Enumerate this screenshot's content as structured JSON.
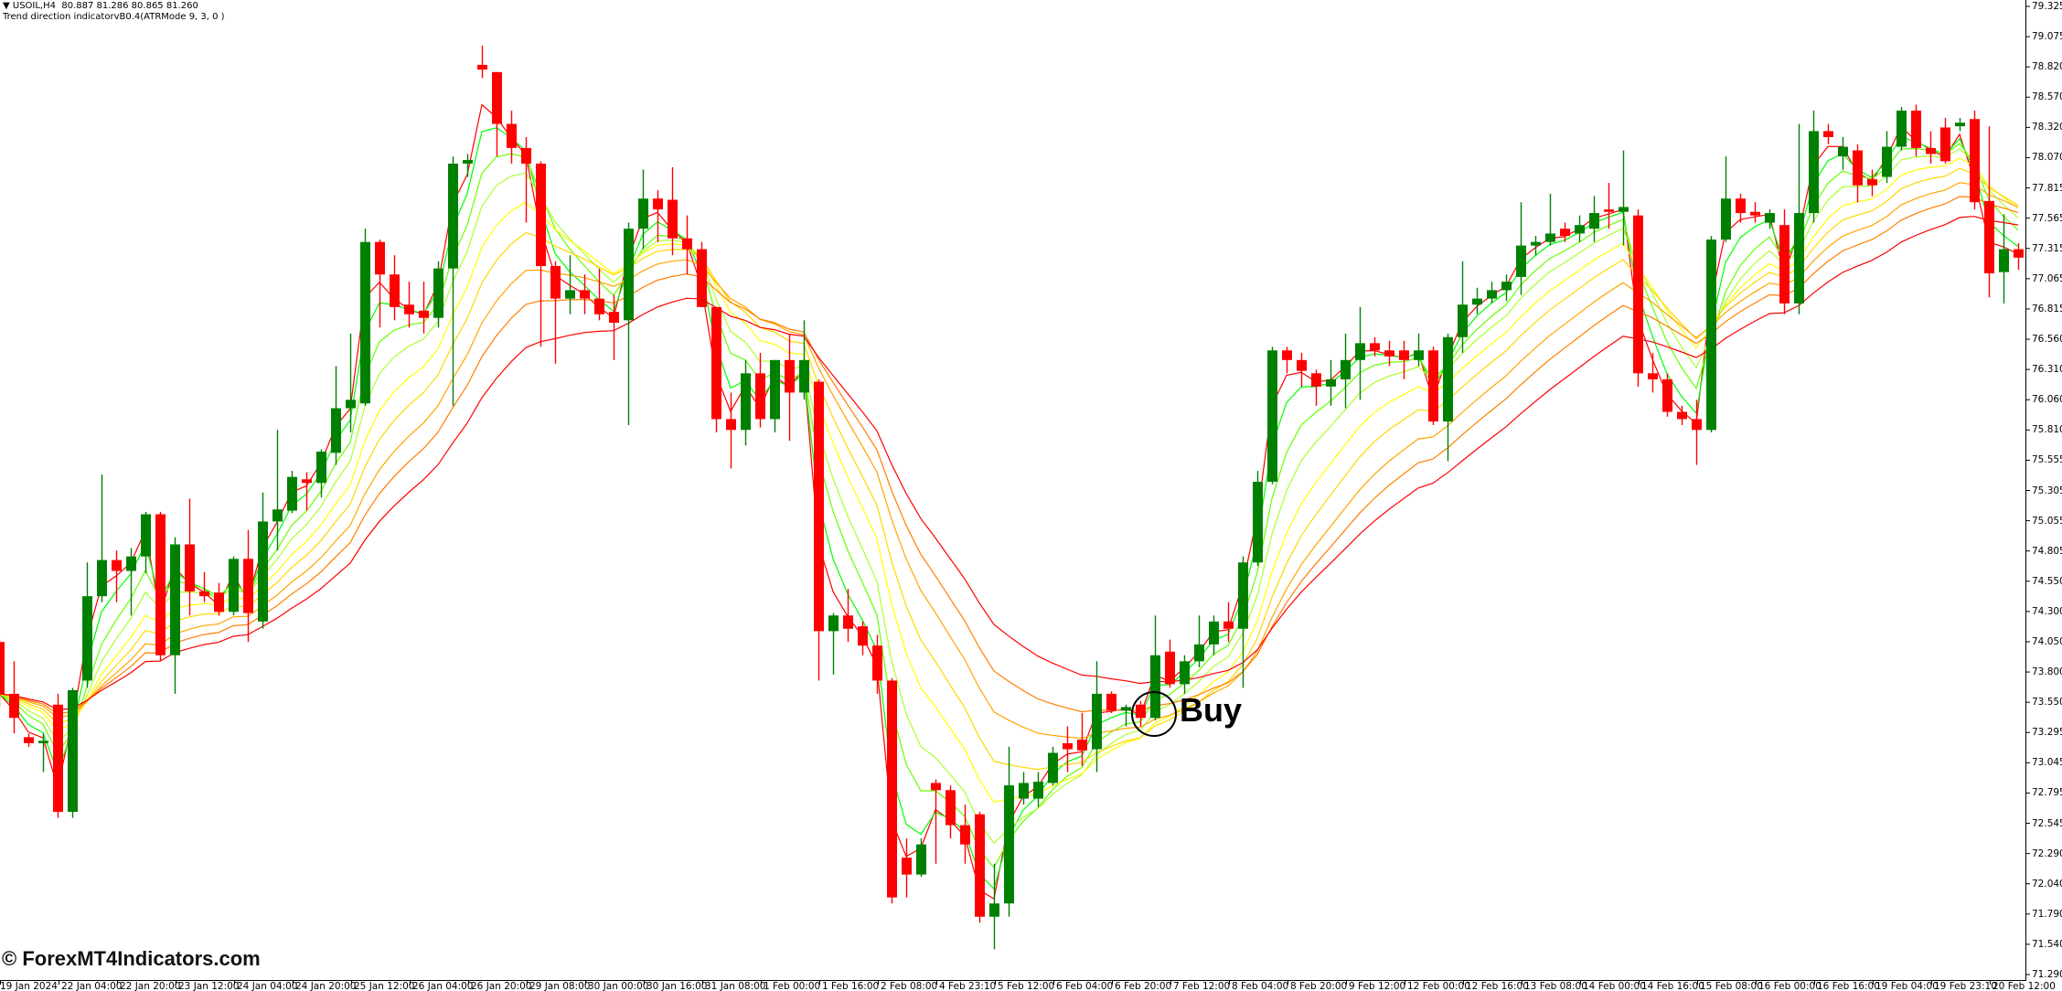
{
  "header": {
    "symbol_line": "▼ USOIL,H4  80.887 81.286 80.865 81.260",
    "indicator_line": "Trend direction indicatorvB0.4(ATRMode 9, 3, 0 )"
  },
  "annotation": {
    "label": "Buy"
  },
  "watermark": "© ForexMT4Indicators.com",
  "colors": {
    "bull": "#008000",
    "bear": "#ff0000",
    "indicator_lines": [
      "#ff0000",
      "#00ff00",
      "#66ff00",
      "#adff2f",
      "#ffff00",
      "#ffd700",
      "#ffa500",
      "#ff7f00",
      "#ff0000"
    ]
  },
  "chart_data": {
    "type": "candlestick",
    "symbol": "USOIL",
    "timeframe": "H4",
    "ylim": [
      71.29,
      79.325
    ],
    "y_ticks": [
      "79.325",
      "79.075",
      "78.820",
      "78.570",
      "78.320",
      "78.070",
      "77.815",
      "77.565",
      "77.315",
      "77.065",
      "76.815",
      "76.560",
      "76.310",
      "76.060",
      "75.810",
      "75.555",
      "75.305",
      "75.055",
      "74.805",
      "74.550",
      "74.300",
      "74.050",
      "73.800",
      "73.550",
      "73.295",
      "73.045",
      "72.795",
      "72.545",
      "72.290",
      "72.040",
      "71.790",
      "71.540",
      "71.290"
    ],
    "x_ticks": [
      "19 Jan 2024",
      "22 Jan 04:00",
      "22 Jan 20:00",
      "23 Jan 12:00",
      "24 Jan 04:00",
      "24 Jan 20:00",
      "25 Jan 12:00",
      "26 Jan 04:00",
      "26 Jan 20:00",
      "29 Jan 08:00",
      "30 Jan 00:00",
      "30 Jan 16:00",
      "31 Jan 08:00",
      "1 Feb 00:00",
      "1 Feb 16:00",
      "2 Feb 08:00",
      "4 Feb 23:10",
      "5 Feb 12:00",
      "6 Feb 04:00",
      "6 Feb 20:00",
      "7 Feb 12:00",
      "8 Feb 04:00",
      "8 Feb 20:00",
      "9 Feb 12:00",
      "12 Feb 00:00",
      "12 Feb 16:00",
      "13 Feb 08:00",
      "14 Feb 00:00",
      "14 Feb 16:00",
      "15 Feb 08:00",
      "16 Feb 00:00",
      "16 Feb 16:00",
      "19 Feb 04:00",
      "19 Feb 23:10",
      "20 Feb 12:00"
    ],
    "grid": false,
    "candles_ohlc": [
      [
        74.05,
        74.07,
        73.51,
        73.62
      ],
      [
        73.62,
        73.89,
        73.29,
        73.42
      ],
      [
        73.26,
        73.29,
        73.18,
        73.21
      ],
      [
        73.21,
        73.29,
        72.97,
        73.23
      ],
      [
        73.53,
        73.62,
        72.59,
        72.64
      ],
      [
        72.64,
        73.67,
        72.59,
        73.65
      ],
      [
        73.73,
        74.71,
        73.67,
        74.43
      ],
      [
        74.43,
        75.44,
        74.38,
        74.73
      ],
      [
        74.73,
        74.81,
        74.38,
        74.64
      ],
      [
        74.64,
        74.83,
        74.27,
        74.76
      ],
      [
        74.76,
        75.13,
        74.62,
        75.11
      ],
      [
        75.11,
        75.13,
        73.89,
        73.94
      ],
      [
        73.94,
        74.92,
        73.62,
        74.86
      ],
      [
        74.86,
        75.24,
        74.27,
        74.47
      ],
      [
        74.47,
        74.63,
        74.38,
        74.43
      ],
      [
        74.46,
        74.54,
        74.27,
        74.3
      ],
      [
        74.3,
        74.76,
        74.27,
        74.74
      ],
      [
        74.74,
        74.98,
        74.05,
        74.29
      ],
      [
        74.22,
        75.29,
        74.16,
        75.05
      ],
      [
        75.05,
        75.81,
        74.81,
        75.15
      ],
      [
        75.14,
        75.47,
        75.12,
        75.42
      ],
      [
        75.4,
        75.46,
        75.14,
        75.37
      ],
      [
        75.37,
        75.65,
        75.25,
        75.63
      ],
      [
        75.62,
        76.34,
        75.52,
        75.99
      ],
      [
        75.99,
        76.61,
        75.79,
        76.06
      ],
      [
        76.03,
        77.48,
        76.01,
        77.37
      ],
      [
        77.37,
        77.39,
        76.66,
        77.1
      ],
      [
        77.1,
        77.26,
        76.72,
        76.83
      ],
      [
        76.85,
        77.04,
        76.66,
        76.77
      ],
      [
        76.8,
        77.04,
        76.61,
        76.74
      ],
      [
        76.74,
        77.21,
        76.66,
        77.15
      ],
      [
        77.15,
        78.08,
        76.01,
        78.02
      ],
      [
        78.02,
        78.1,
        77.91,
        78.05
      ],
      [
        78.84,
        79.0,
        78.73,
        78.8
      ],
      [
        78.78,
        78.78,
        78.08,
        78.35
      ],
      [
        78.35,
        78.46,
        78.02,
        78.15
      ],
      [
        78.15,
        78.24,
        77.53,
        78.02
      ],
      [
        78.02,
        78.04,
        76.5,
        77.17
      ],
      [
        77.17,
        77.21,
        76.36,
        76.9
      ],
      [
        76.9,
        77.26,
        76.77,
        76.97
      ],
      [
        76.97,
        77.1,
        76.77,
        76.9
      ],
      [
        76.9,
        77.15,
        76.72,
        76.77
      ],
      [
        76.79,
        76.93,
        76.39,
        76.7
      ],
      [
        76.72,
        77.53,
        75.85,
        77.48
      ],
      [
        77.48,
        77.97,
        77.31,
        77.73
      ],
      [
        77.73,
        77.8,
        77.37,
        77.64
      ],
      [
        77.72,
        77.99,
        77.26,
        77.4
      ],
      [
        77.4,
        77.59,
        77.1,
        77.31
      ],
      [
        77.31,
        77.37,
        76.83,
        76.83
      ],
      [
        76.83,
        76.83,
        75.79,
        75.9
      ],
      [
        75.9,
        76.12,
        75.49,
        75.81
      ],
      [
        75.81,
        76.39,
        75.68,
        76.28
      ],
      [
        76.28,
        76.45,
        75.83,
        75.9
      ],
      [
        75.9,
        76.39,
        75.79,
        76.39
      ],
      [
        76.39,
        76.61,
        75.72,
        76.12
      ],
      [
        76.12,
        76.72,
        76.06,
        76.39
      ],
      [
        76.21,
        76.23,
        73.73,
        74.14
      ],
      [
        74.14,
        74.29,
        73.78,
        74.27
      ],
      [
        74.27,
        74.49,
        74.05,
        74.16
      ],
      [
        74.18,
        74.22,
        73.94,
        74.02
      ],
      [
        74.02,
        74.11,
        73.62,
        73.73
      ],
      [
        73.73,
        73.75,
        71.88,
        71.93
      ],
      [
        72.26,
        72.42,
        71.93,
        72.12
      ],
      [
        72.12,
        72.42,
        72.1,
        72.37
      ],
      [
        72.88,
        72.91,
        72.21,
        72.82
      ],
      [
        72.82,
        72.86,
        72.42,
        72.53
      ],
      [
        72.53,
        72.7,
        72.21,
        72.37
      ],
      [
        72.62,
        72.64,
        71.72,
        71.77
      ],
      [
        71.77,
        72.21,
        71.5,
        71.88
      ],
      [
        71.88,
        73.18,
        71.77,
        72.86
      ],
      [
        72.75,
        72.97,
        72.7,
        72.88
      ],
      [
        72.75,
        72.97,
        72.68,
        72.89
      ],
      [
        72.88,
        73.18,
        72.86,
        73.13
      ],
      [
        73.21,
        73.35,
        72.97,
        73.16
      ],
      [
        73.24,
        73.46,
        73.02,
        73.15
      ],
      [
        73.16,
        73.89,
        72.97,
        73.62
      ],
      [
        73.62,
        73.64,
        73.46,
        73.48
      ],
      [
        73.48,
        73.53,
        73.35,
        73.51
      ],
      [
        73.53,
        73.56,
        73.35,
        73.42
      ],
      [
        73.42,
        74.27,
        73.4,
        73.94
      ],
      [
        73.97,
        74.07,
        73.67,
        73.7
      ],
      [
        73.7,
        73.94,
        73.62,
        73.89
      ],
      [
        73.89,
        74.27,
        73.84,
        74.03
      ],
      [
        74.03,
        74.27,
        73.94,
        74.22
      ],
      [
        74.22,
        74.38,
        74.05,
        74.16
      ],
      [
        74.16,
        74.76,
        73.67,
        74.71
      ],
      [
        74.71,
        75.47,
        74.68,
        75.38
      ],
      [
        75.38,
        76.5,
        75.36,
        76.47
      ],
      [
        76.47,
        76.5,
        76.28,
        76.39
      ],
      [
        76.39,
        76.45,
        76.17,
        76.3
      ],
      [
        76.28,
        76.31,
        76.01,
        76.17
      ],
      [
        76.17,
        76.39,
        76.01,
        76.23
      ],
      [
        76.23,
        76.61,
        75.99,
        76.39
      ],
      [
        76.39,
        76.83,
        76.06,
        76.53
      ],
      [
        76.53,
        76.58,
        76.42,
        76.47
      ],
      [
        76.47,
        76.55,
        76.34,
        76.42
      ],
      [
        76.47,
        76.55,
        76.23,
        76.39
      ],
      [
        76.39,
        76.61,
        76.34,
        76.47
      ],
      [
        76.47,
        76.5,
        75.85,
        75.88
      ],
      [
        75.88,
        76.61,
        75.55,
        76.58
      ],
      [
        76.58,
        77.21,
        76.45,
        76.85
      ],
      [
        76.85,
        76.99,
        76.77,
        76.9
      ],
      [
        76.9,
        77.04,
        76.86,
        76.97
      ],
      [
        76.97,
        77.1,
        76.88,
        77.04
      ],
      [
        77.08,
        77.7,
        76.93,
        77.34
      ],
      [
        77.34,
        77.42,
        77.26,
        77.37
      ],
      [
        77.37,
        77.77,
        77.34,
        77.44
      ],
      [
        77.48,
        77.53,
        77.37,
        77.42
      ],
      [
        77.44,
        77.59,
        77.37,
        77.51
      ],
      [
        77.48,
        77.75,
        77.37,
        77.61
      ],
      [
        77.64,
        77.86,
        77.48,
        77.62
      ],
      [
        77.62,
        78.13,
        77.34,
        77.66
      ],
      [
        77.59,
        77.64,
        76.17,
        76.28
      ],
      [
        76.28,
        76.45,
        76.12,
        76.23
      ],
      [
        76.23,
        76.28,
        75.92,
        75.96
      ],
      [
        75.96,
        76.01,
        75.85,
        75.9
      ],
      [
        75.9,
        76.06,
        75.52,
        75.81
      ],
      [
        75.81,
        77.42,
        75.79,
        77.39
      ],
      [
        77.39,
        78.08,
        77.37,
        77.73
      ],
      [
        77.73,
        77.77,
        77.53,
        77.61
      ],
      [
        77.62,
        77.7,
        77.53,
        77.59
      ],
      [
        77.53,
        77.64,
        77.48,
        77.61
      ],
      [
        77.51,
        77.64,
        76.77,
        76.86
      ],
      [
        76.86,
        78.35,
        76.77,
        77.61
      ],
      [
        77.61,
        78.46,
        77.53,
        78.29
      ],
      [
        78.29,
        78.35,
        78.18,
        78.24
      ],
      [
        78.08,
        78.24,
        77.97,
        78.16
      ],
      [
        78.13,
        78.18,
        77.7,
        77.84
      ],
      [
        77.89,
        77.97,
        77.75,
        77.84
      ],
      [
        77.91,
        78.29,
        77.86,
        78.16
      ],
      [
        78.16,
        78.49,
        78.13,
        78.46
      ],
      [
        78.46,
        78.51,
        78.08,
        78.15
      ],
      [
        78.15,
        78.29,
        78.02,
        78.1
      ],
      [
        78.32,
        78.4,
        78.02,
        78.04
      ],
      [
        78.33,
        78.4,
        78.29,
        78.36
      ],
      [
        78.39,
        78.46,
        77.64,
        77.7
      ],
      [
        77.71,
        78.33,
        76.91,
        77.11
      ],
      [
        77.12,
        77.6,
        76.86,
        77.31
      ],
      [
        77.31,
        77.36,
        77.14,
        77.24
      ]
    ],
    "annotations": [
      {
        "label": "Buy",
        "candle_index": 79
      }
    ]
  }
}
